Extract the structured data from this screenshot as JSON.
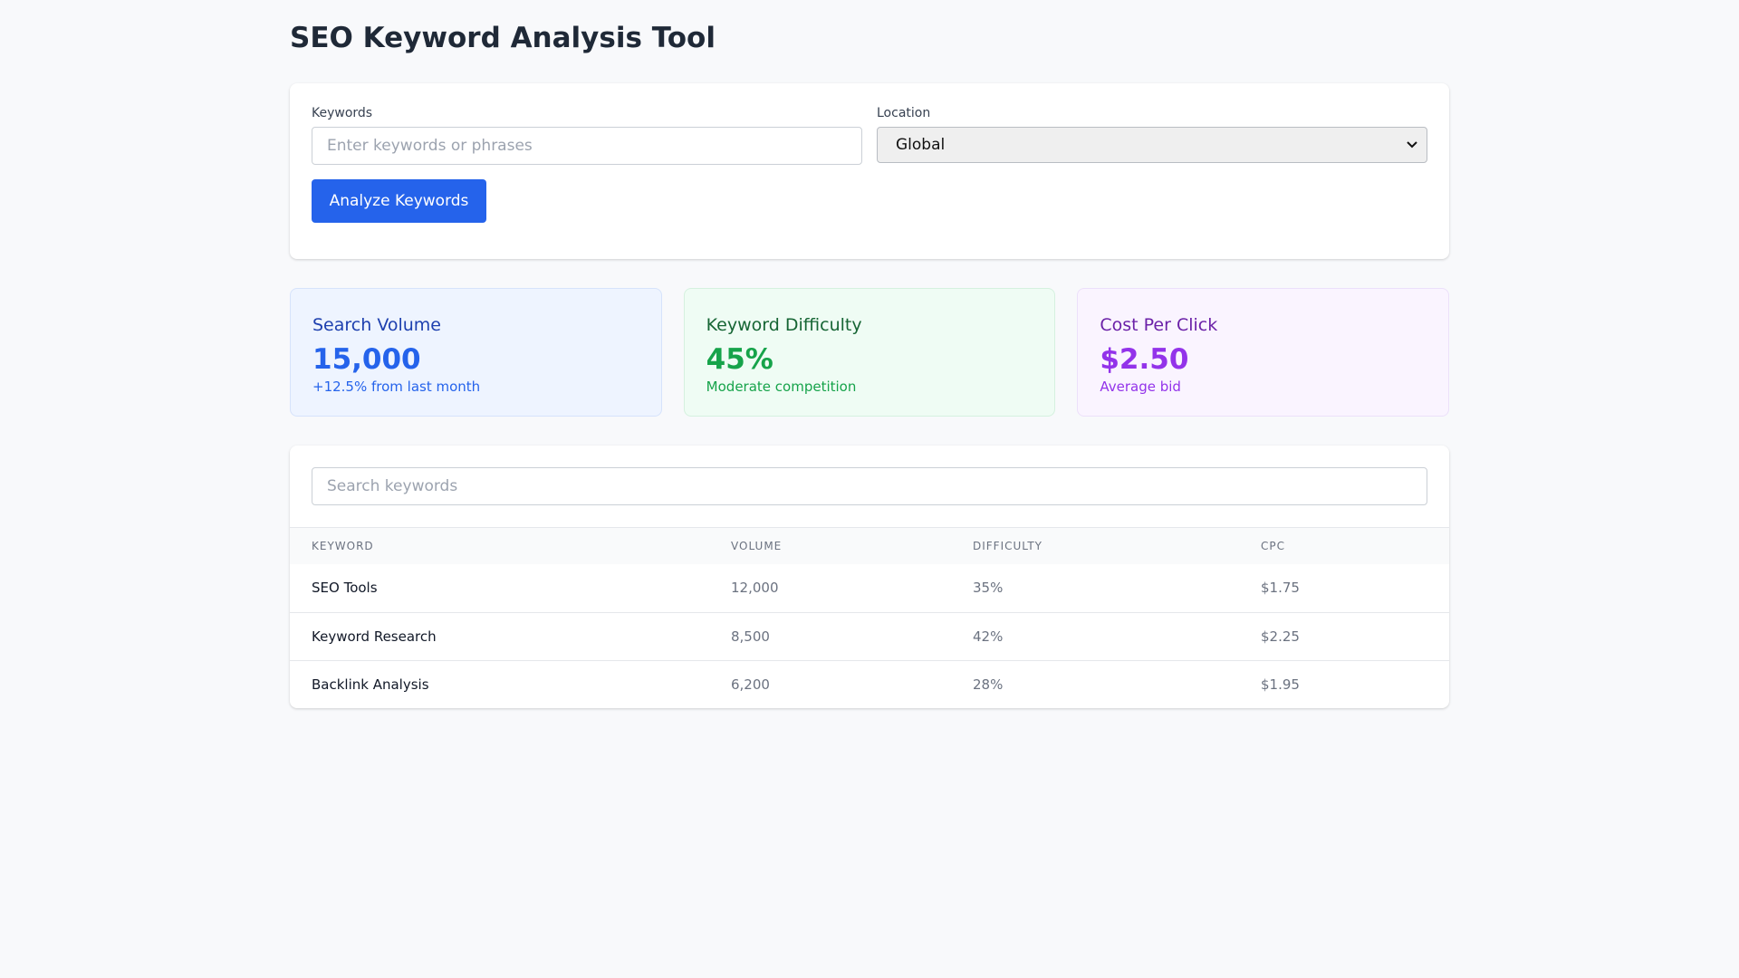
{
  "page": {
    "title": "SEO Keyword Analysis Tool"
  },
  "form": {
    "keywords_label": "Keywords",
    "keywords_placeholder": "Enter keywords or phrases",
    "keywords_value": "",
    "location_label": "Location",
    "location_selected": "Global",
    "analyze_button": "Analyze Keywords"
  },
  "stats": [
    {
      "title": "Search Volume",
      "value": "15,000",
      "sub": "+12.5% from last month",
      "color": "#2563eb"
    },
    {
      "title": "Keyword Difficulty",
      "value": "45%",
      "sub": "Moderate competition",
      "color": "#16a34a"
    },
    {
      "title": "Cost Per Click",
      "value": "$2.50",
      "sub": "Average bid",
      "color": "#9333ea"
    }
  ],
  "table": {
    "search_placeholder": "Search keywords",
    "headers": [
      "KEYWORD",
      "VOLUME",
      "DIFFICULTY",
      "CPC"
    ],
    "rows": [
      [
        "SEO Tools",
        "12,000",
        "35%",
        "$1.75"
      ],
      [
        "Keyword Research",
        "8,500",
        "42%",
        "$2.25"
      ],
      [
        "Backlink Analysis",
        "6,200",
        "28%",
        "$1.95"
      ]
    ]
  },
  "colors": {
    "accent": "#2563eb",
    "background": "#f8f9fb"
  },
  "icons": {
    "select_caret": "chevron-down-icon"
  }
}
